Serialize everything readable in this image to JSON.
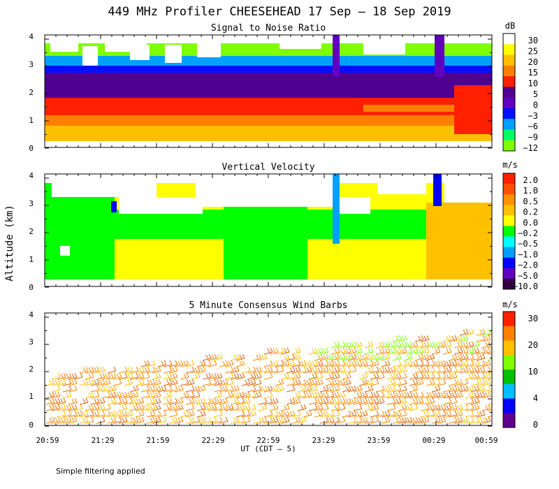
{
  "title": "449 MHz Profiler CHEESEHEAD 17 Sep – 18 Sep 2019",
  "ylabel": "Altitude (km)",
  "xlabel": "UT  (CDT – 5)",
  "footnote": "Simple filtering applied",
  "x_ticks": [
    "20:59",
    "21:29",
    "21:59",
    "22:29",
    "22:59",
    "23:29",
    "23:59",
    "00:29",
    "00:59"
  ],
  "y_ticks": [
    "0",
    "1",
    "2",
    "3",
    "4"
  ],
  "chart_data": [
    {
      "type": "heatmap",
      "title": "Signal to Noise Ratio",
      "xlabel": "UT (CDT - 5)",
      "ylabel": "Altitude (km)",
      "x_range": [
        "20:59",
        "00:59"
      ],
      "ylim": [
        0,
        4
      ],
      "colorbar_unit": "dB",
      "colorbar_ticks": [
        "30",
        "25",
        "20",
        "15",
        "10",
        "5",
        "0",
        "−3",
        "−6",
        "−9",
        "−12"
      ],
      "colorbar_colors": [
        "#ffffff",
        "#ffff00",
        "#ffc000",
        "#ff8000",
        "#ff2000",
        "#500090",
        "#6000c0",
        "#0010ff",
        "#00a0ff",
        "#00ff60",
        "#80ff00"
      ],
      "profile_snr_by_altitude": [
        {
          "alt_km": 0.5,
          "snr_db": 18
        },
        {
          "alt_km": 1.0,
          "snr_db": 15
        },
        {
          "alt_km": 1.5,
          "snr_db": 10
        },
        {
          "alt_km": 2.0,
          "snr_db": 4
        },
        {
          "alt_km": 2.5,
          "snr_db": 3
        },
        {
          "alt_km": 3.0,
          "snr_db": -4
        },
        {
          "alt_km": 3.5,
          "snr_db": -10
        }
      ]
    },
    {
      "type": "heatmap",
      "title": "Vertical Velocity",
      "xlabel": "UT (CDT - 5)",
      "ylabel": "Altitude (km)",
      "x_range": [
        "20:59",
        "00:59"
      ],
      "ylim": [
        0,
        4
      ],
      "colorbar_unit": "m/s",
      "colorbar_ticks": [
        "2.0",
        "1.0",
        "0.5",
        "0.2",
        "0.0",
        "−0.2",
        "−0.5",
        "−1.0",
        "−2.0",
        "−5.0",
        "−10.0"
      ],
      "colorbar_colors": [
        "#ff2000",
        "#ff5000",
        "#ff9000",
        "#ffc000",
        "#ffff00",
        "#00ff00",
        "#00ffff",
        "#00a0ff",
        "#0000ff",
        "#6000c0",
        "#300040"
      ],
      "typical_values_m_s": {
        "below_2km_early": 0.0,
        "2_to_3km_early": -0.2,
        "late_period": 0.2
      }
    },
    {
      "type": "wind_barbs",
      "title": "5 Minute Consensus Wind Barbs",
      "xlabel": "UT (CDT - 5)",
      "ylabel": "Altitude (km)",
      "x_range": [
        "20:59",
        "00:59"
      ],
      "ylim": [
        0,
        4
      ],
      "colorbar_unit": "m/s",
      "colorbar_ticks": [
        "30",
        "20",
        "10",
        "4",
        "0"
      ],
      "colorbar_colors": [
        "#ff2000",
        "#ff8000",
        "#ffc000",
        "#80ff00",
        "#00c000",
        "#00c0ff",
        "#0000ff",
        "#600090"
      ],
      "typical_speed_m_s": 20
    }
  ]
}
